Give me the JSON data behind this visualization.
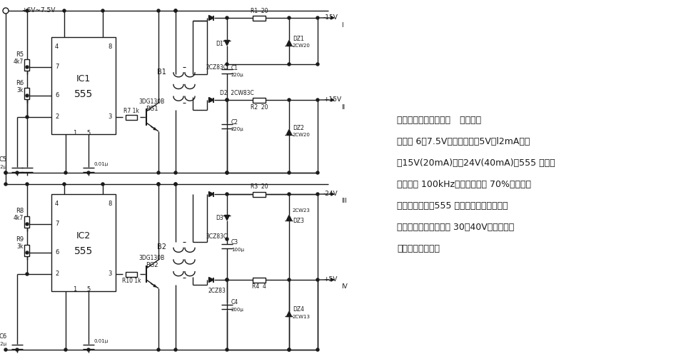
{
  "bg_color": "#ffffff",
  "line_color": "#1a1a1a",
  "text_color": "#1a1a1a",
  "title_line": "直流变换四种升压电源   此电路输",
  "desc_lines": [
    "入电压 6～7.5V，可变换为＋5V（l2mA）、",
    "１15V(20mA)、－24V(40mA)。555 的振荡",
    "频率约为 100kHz，占空比约为 70%。利用三",
    "极管截止期间（555 输出低电平），在变压",
    "器次级产生感应电动势 30～40V，经整流、",
    "滤波、稳压输出。"
  ]
}
